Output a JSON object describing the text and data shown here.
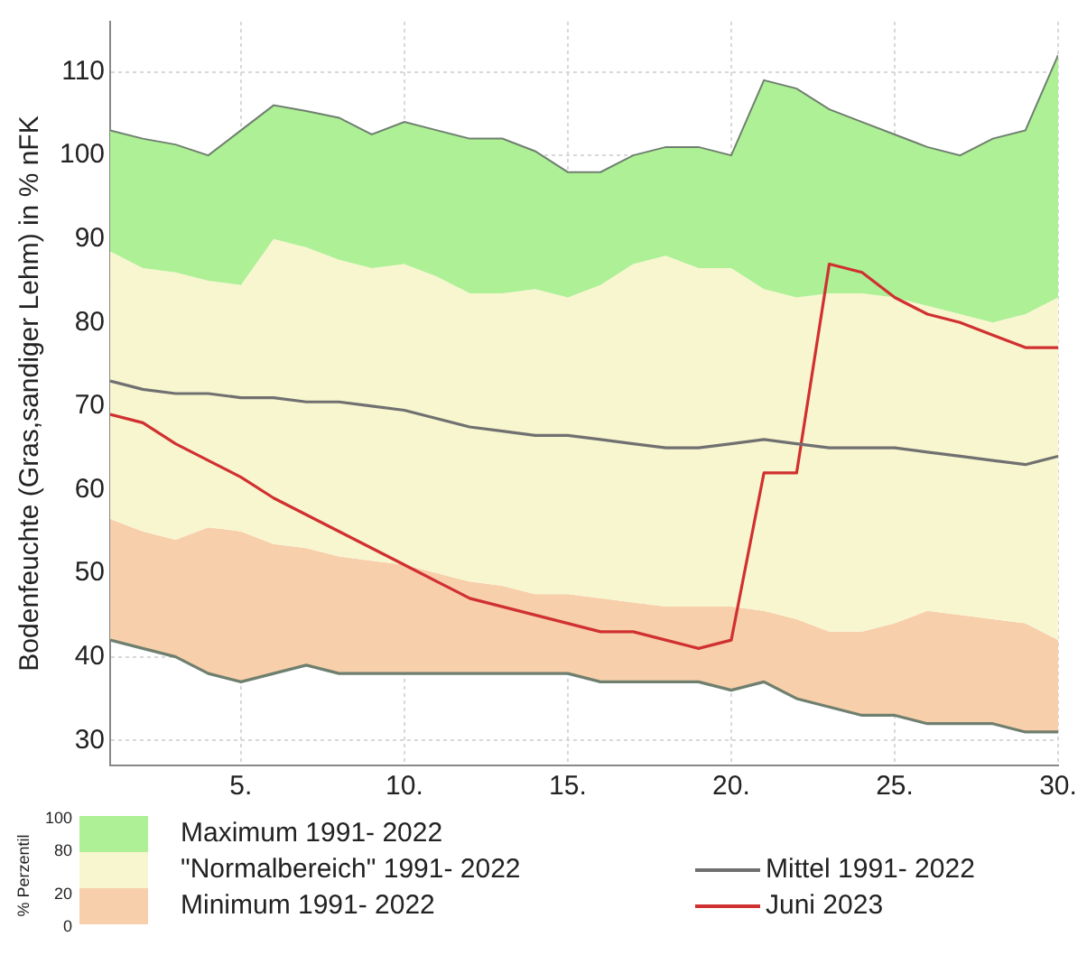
{
  "chart_data": {
    "type": "area",
    "ylabel": "Bodenfeuchte (Gras,sandiger Lehm) in % nFK",
    "x": [
      1,
      2,
      3,
      4,
      5,
      6,
      7,
      8,
      9,
      10,
      11,
      12,
      13,
      14,
      15,
      16,
      17,
      18,
      19,
      20,
      21,
      22,
      23,
      24,
      25,
      26,
      27,
      28,
      29,
      30
    ],
    "xlim": [
      1,
      30
    ],
    "ylim": [
      27,
      116
    ],
    "xticks": [
      {
        "value": 5,
        "label": "5."
      },
      {
        "value": 10,
        "label": "10."
      },
      {
        "value": 15,
        "label": "15."
      },
      {
        "value": 20,
        "label": "20."
      },
      {
        "value": 25,
        "label": "25."
      },
      {
        "value": 30,
        "label": "30."
      }
    ],
    "yticks": [
      30,
      40,
      50,
      60,
      70,
      80,
      90,
      100,
      110
    ],
    "grid": true,
    "legend": "bottom",
    "legend_title": "% Perzentil",
    "annotations": [
      "100",
      "80",
      "20",
      "0"
    ],
    "series": [
      {
        "name": "Maximum 1991- 2022",
        "color": "#aef095",
        "values": [
          103,
          102,
          101.3,
          100,
          103,
          106,
          105.3,
          104.5,
          102.5,
          104,
          103,
          102,
          102,
          100.5,
          98,
          98,
          100,
          101,
          101,
          100,
          109,
          108,
          105.5,
          104,
          102.5,
          101,
          100,
          102,
          103,
          112
        ]
      },
      {
        "name": "\"Normalbereich\" 1991- 2022",
        "color": "#f8f6cf",
        "values": [
          88.5,
          86.5,
          86,
          85,
          84.5,
          90,
          89,
          87.5,
          86.5,
          87,
          85.5,
          83.5,
          83.5,
          84,
          83,
          84.5,
          87,
          88,
          86.5,
          86.5,
          84,
          83,
          83.5,
          83.5,
          83,
          82,
          81,
          80,
          81,
          83
        ]
      },
      {
        "name": "Minimum 1991- 2022",
        "color": "#f7cfaa",
        "values": [
          56.5,
          55,
          54,
          55.5,
          55,
          53.5,
          53,
          52,
          51.5,
          51,
          50,
          49,
          48.5,
          47.5,
          47.5,
          47,
          46.5,
          46,
          46,
          46,
          45.5,
          44.5,
          43,
          43,
          44,
          45.5,
          45,
          44.5,
          44,
          42
        ]
      },
      {
        "type": "line",
        "color": "#6f7f6f",
        "values": [
          42,
          41,
          40,
          38,
          37,
          38,
          39,
          38,
          38,
          38,
          38,
          38,
          38,
          38,
          38,
          37,
          37,
          37,
          37,
          36,
          37,
          35,
          34,
          33,
          33,
          32,
          32,
          32,
          31,
          31
        ]
      },
      {
        "name": "Mittel 1991- 2022",
        "type": "line",
        "color": "#707070",
        "values": [
          73,
          72,
          71.5,
          71.5,
          71,
          71,
          70.5,
          70.5,
          70,
          69.5,
          68.5,
          67.5,
          67,
          66.5,
          66.5,
          66,
          65.5,
          65,
          65,
          65.5,
          66,
          65.5,
          65,
          65,
          65,
          64.5,
          64,
          63.5,
          63,
          64
        ]
      },
      {
        "name": "Juni 2023",
        "type": "line",
        "color": "#d03030",
        "values": [
          69,
          68,
          65.5,
          63.5,
          61.5,
          59,
          57,
          55,
          53,
          51,
          49,
          47,
          46,
          45,
          44,
          43,
          43,
          42,
          41,
          42,
          62,
          62,
          87,
          86,
          83,
          81,
          80,
          78.5,
          77,
          77
        ]
      }
    ]
  }
}
